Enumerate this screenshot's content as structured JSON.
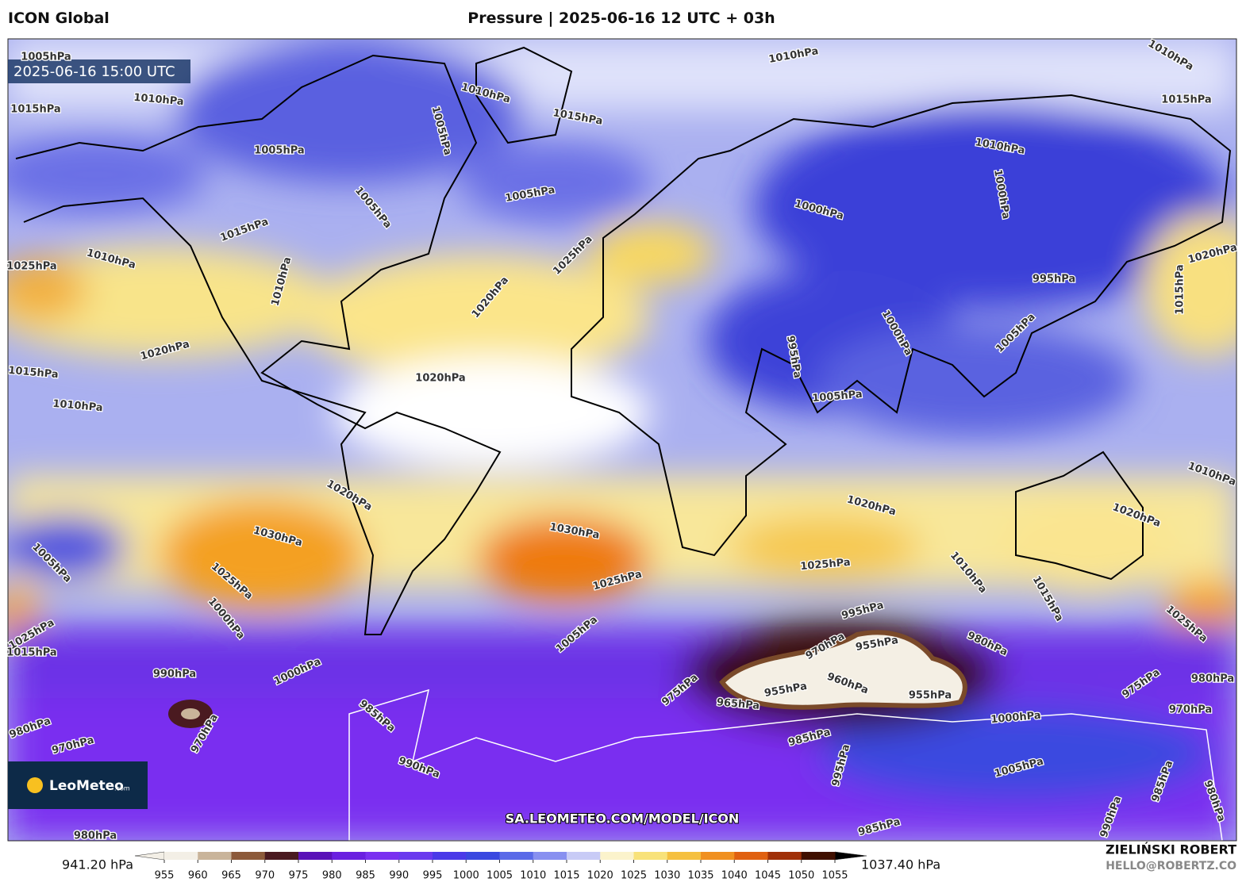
{
  "header": {
    "model": "ICON Global",
    "title": "Pressure | 2025-06-16 12 UTC + 03h"
  },
  "map": {
    "timestamp": "2025-06-16 15:00 UTC",
    "watermark": "SA.LEOMETEO.COM/MODEL/ICON",
    "logo": {
      "name": "LeoMeteo",
      "suffix": ".com"
    },
    "contour_labels": [
      "1005hPa",
      "1010hPa",
      "1010hPa",
      "1010hPa",
      "1010hPa",
      "1015hPa",
      "1015hPa",
      "1015hPa",
      "1005hPa",
      "1005hPa",
      "1010hPa",
      "1000hPa",
      "1005hPa",
      "1005hPa",
      "1000hPa",
      "1015hPa",
      "1010hPa",
      "1025hPa",
      "1020hPa",
      "1010hPa",
      "1025hPa",
      "1020hPa",
      "995hPa",
      "1015hPa",
      "1000hPa",
      "995hPa",
      "1005hPa",
      "1020hPa",
      "1015hPa",
      "1020hPa",
      "1005hPa",
      "1010hPa",
      "1020hPa",
      "1020hPa",
      "1010hPa",
      "1020hPa",
      "1030hPa",
      "1030hPa",
      "1005hPa",
      "1025hPa",
      "1025hPa",
      "1025hPa",
      "1010hPa",
      "1015hPa",
      "1000hPa",
      "995hPa",
      "1025hPa",
      "1025hPa",
      "1005hPa",
      "980hPa",
      "955hPa",
      "970hPa",
      "1015hPa",
      "990hPa",
      "1000hPa",
      "960hPa",
      "955hPa",
      "955hPa",
      "975hPa",
      "980hPa",
      "965hPa",
      "975hPa",
      "985hPa",
      "970hPa",
      "1000hPa",
      "970hPa",
      "980hPa",
      "970hPa",
      "985hPa",
      "995hPa",
      "990hPa",
      "1005hPa",
      "985hPa",
      "980hPa",
      "990hPa",
      "985hPa",
      "980hPa"
    ]
  },
  "colorbar": {
    "min_label": "941.20 hPa",
    "max_label": "1037.40 hPa",
    "ticks": [
      955,
      960,
      965,
      970,
      975,
      980,
      985,
      990,
      995,
      1000,
      1005,
      1010,
      1015,
      1020,
      1025,
      1030,
      1035,
      1040,
      1045,
      1050,
      1055
    ],
    "colors": [
      "#f3efe6",
      "#c9b49a",
      "#8c5a3a",
      "#4a1a20",
      "#5a12b8",
      "#6a20e0",
      "#7a30f0",
      "#6a3aee",
      "#4a3ae8",
      "#3a48e0",
      "#5a6ae8",
      "#8890f0",
      "#c8cbf6",
      "#fbf3cc",
      "#f8e27a",
      "#f5c040",
      "#f09020",
      "#e06010",
      "#a03008",
      "#401000"
    ]
  },
  "footer": {
    "author": "ZIELIŃSKI ROBERT",
    "email": "HELLO@ROBERTZ.CO"
  }
}
